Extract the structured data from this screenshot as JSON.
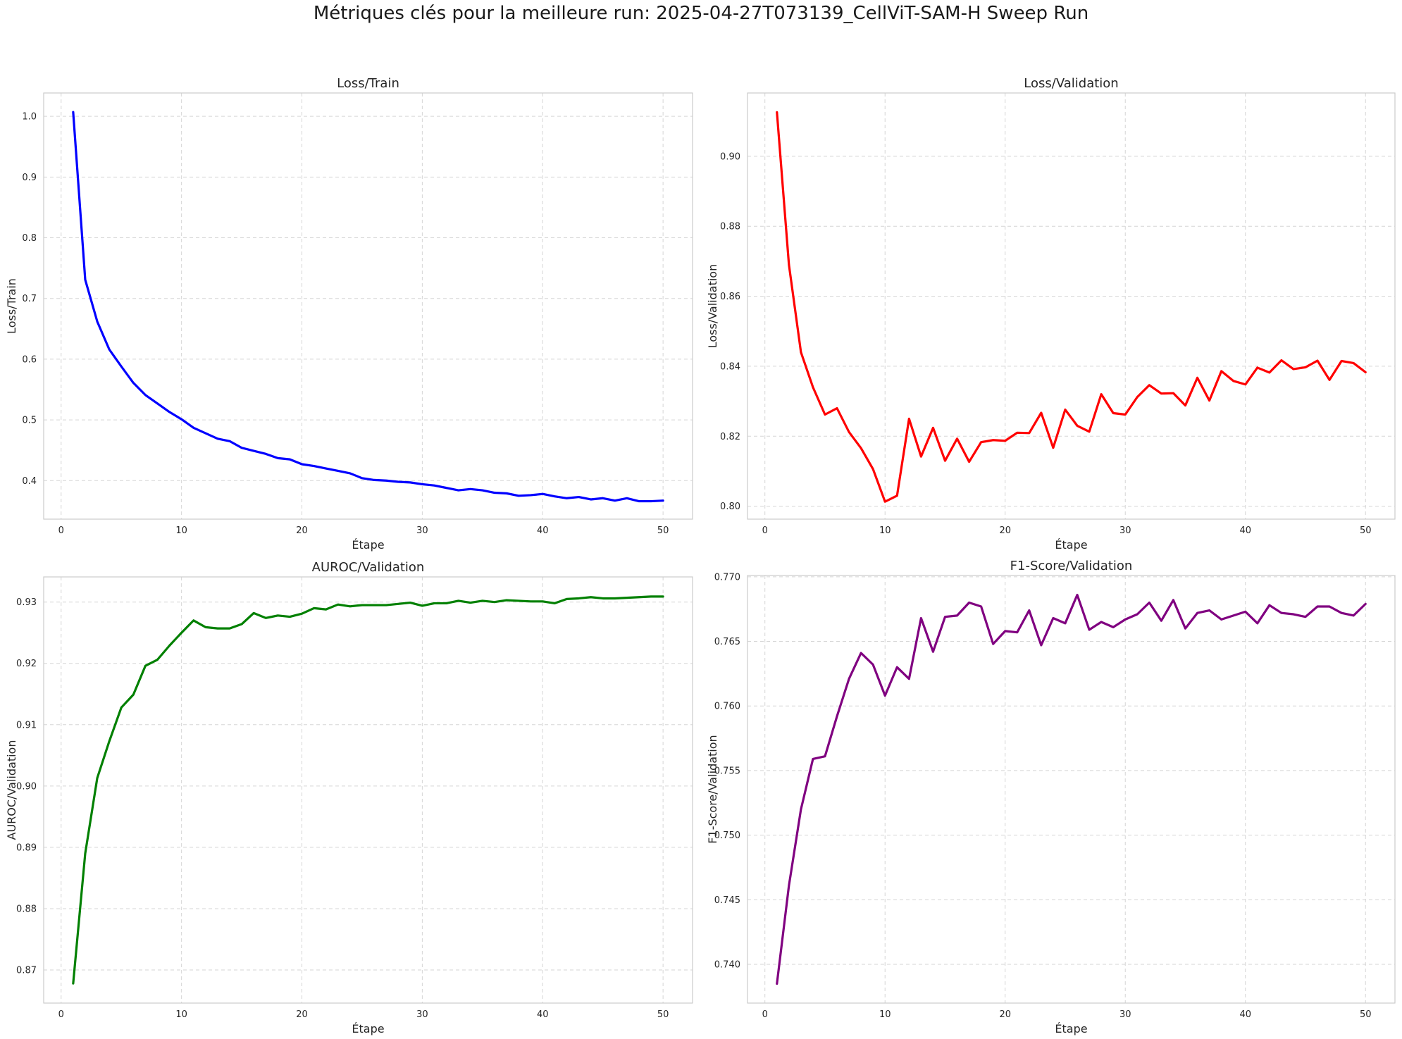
{
  "figure": {
    "title": "Métriques clés pour la meilleure run: 2025-04-27T073139_CellViT-SAM-H Sweep Run"
  },
  "chart_data": [
    {
      "type": "line",
      "title": "Loss/Train",
      "xlabel": "Étape",
      "ylabel": "Loss/Train",
      "xlim": [
        -1.45,
        52.45
      ],
      "ylim": [
        0.3365,
        1.0385
      ],
      "xticks": [
        0,
        10,
        20,
        30,
        40,
        50
      ],
      "xtick_labels": [
        "0",
        "10",
        "20",
        "30",
        "40",
        "50"
      ],
      "yticks": [
        0.4,
        0.5,
        0.6,
        0.7,
        0.8,
        0.9,
        1.0
      ],
      "ytick_labels": [
        "0.4",
        "0.5",
        "0.6",
        "0.7",
        "0.8",
        "0.9",
        "1.0"
      ],
      "grid": true,
      "color": "#0000ff",
      "x": [
        1,
        2,
        3,
        4,
        5,
        6,
        7,
        8,
        9,
        10,
        11,
        12,
        13,
        14,
        15,
        16,
        17,
        18,
        19,
        20,
        21,
        22,
        23,
        24,
        25,
        26,
        27,
        28,
        29,
        30,
        31,
        32,
        33,
        34,
        35,
        36,
        37,
        38,
        39,
        40,
        41,
        42,
        43,
        44,
        45,
        46,
        47,
        48,
        49,
        50
      ],
      "values": [
        1.007,
        0.731,
        0.662,
        0.616,
        0.588,
        0.561,
        0.541,
        0.527,
        0.513,
        0.501,
        0.487,
        0.478,
        0.469,
        0.465,
        0.454,
        0.449,
        0.444,
        0.437,
        0.435,
        0.427,
        0.424,
        0.42,
        0.416,
        0.412,
        0.404,
        0.401,
        0.4,
        0.398,
        0.397,
        0.394,
        0.392,
        0.388,
        0.384,
        0.386,
        0.384,
        0.38,
        0.379,
        0.375,
        0.376,
        0.378,
        0.374,
        0.371,
        0.373,
        0.369,
        0.371,
        0.367,
        0.371,
        0.366,
        0.366,
        0.367
      ]
    },
    {
      "type": "line",
      "title": "Loss/Validation",
      "xlabel": "Étape",
      "ylabel": "Loss/Validation",
      "xlim": [
        -1.45,
        52.45
      ],
      "ylim": [
        0.7963,
        0.9181
      ],
      "xticks": [
        0,
        10,
        20,
        30,
        40,
        50
      ],
      "xtick_labels": [
        "0",
        "10",
        "20",
        "30",
        "40",
        "50"
      ],
      "yticks": [
        0.8,
        0.82,
        0.84,
        0.86,
        0.88,
        0.9
      ],
      "ytick_labels": [
        "0.80",
        "0.82",
        "0.84",
        "0.86",
        "0.88",
        "0.90"
      ],
      "grid": true,
      "color": "#ff0000",
      "x": [
        1,
        2,
        3,
        4,
        5,
        6,
        7,
        8,
        9,
        10,
        11,
        12,
        13,
        14,
        15,
        16,
        17,
        18,
        19,
        20,
        21,
        22,
        23,
        24,
        25,
        26,
        27,
        28,
        29,
        30,
        31,
        32,
        33,
        34,
        35,
        36,
        37,
        38,
        39,
        40,
        41,
        42,
        43,
        44,
        45,
        46,
        47,
        48,
        49,
        50
      ],
      "values": [
        0.9126,
        0.869,
        0.844,
        0.834,
        0.8262,
        0.828,
        0.8212,
        0.8166,
        0.8106,
        0.8013,
        0.803,
        0.825,
        0.8142,
        0.8224,
        0.813,
        0.8193,
        0.8127,
        0.8183,
        0.8189,
        0.8187,
        0.821,
        0.8209,
        0.8267,
        0.8167,
        0.8276,
        0.823,
        0.8213,
        0.832,
        0.8266,
        0.8262,
        0.8312,
        0.8346,
        0.8322,
        0.8323,
        0.8288,
        0.8367,
        0.8302,
        0.8386,
        0.8358,
        0.8348,
        0.8396,
        0.8382,
        0.8417,
        0.8392,
        0.8397,
        0.8416,
        0.8361,
        0.8415,
        0.8409,
        0.8383
      ]
    },
    {
      "type": "line",
      "title": "AUROC/Validation",
      "xlabel": "Étape",
      "ylabel": "AUROC/Validation",
      "xlim": [
        -1.45,
        52.45
      ],
      "ylim": [
        0.8646,
        0.9341
      ],
      "xticks": [
        0,
        10,
        20,
        30,
        40,
        50
      ],
      "xtick_labels": [
        "0",
        "10",
        "20",
        "30",
        "40",
        "50"
      ],
      "yticks": [
        0.87,
        0.88,
        0.89,
        0.9,
        0.91,
        0.92,
        0.93
      ],
      "ytick_labels": [
        "0.87",
        "0.88",
        "0.89",
        "0.90",
        "0.91",
        "0.92",
        "0.93"
      ],
      "grid": true,
      "color": "#008000",
      "x": [
        1,
        2,
        3,
        4,
        5,
        6,
        7,
        8,
        9,
        10,
        11,
        12,
        13,
        14,
        15,
        16,
        17,
        18,
        19,
        20,
        21,
        22,
        23,
        24,
        25,
        26,
        27,
        28,
        29,
        30,
        31,
        32,
        33,
        34,
        35,
        36,
        37,
        38,
        39,
        40,
        41,
        42,
        43,
        44,
        45,
        46,
        47,
        48,
        49,
        50
      ],
      "values": [
        0.8678,
        0.889,
        0.9013,
        0.9073,
        0.9128,
        0.9149,
        0.9196,
        0.9206,
        0.9229,
        0.925,
        0.927,
        0.9259,
        0.9257,
        0.9257,
        0.9264,
        0.9282,
        0.9274,
        0.9278,
        0.9276,
        0.9281,
        0.929,
        0.9288,
        0.9296,
        0.9293,
        0.9295,
        0.9295,
        0.9295,
        0.9297,
        0.9299,
        0.9294,
        0.9298,
        0.9298,
        0.9302,
        0.9299,
        0.9302,
        0.93,
        0.9303,
        0.9302,
        0.9301,
        0.9301,
        0.9298,
        0.9305,
        0.9306,
        0.9308,
        0.9306,
        0.9306,
        0.9307,
        0.9308,
        0.9309,
        0.9309
      ]
    },
    {
      "type": "line",
      "title": "F1-Score/Validation",
      "xlabel": "Étape",
      "ylabel": "F1-Score/Validation",
      "xlim": [
        -1.45,
        52.45
      ],
      "ylim": [
        0.737,
        0.7701
      ],
      "xticks": [
        0,
        10,
        20,
        30,
        40,
        50
      ],
      "xtick_labels": [
        "0",
        "10",
        "20",
        "30",
        "40",
        "50"
      ],
      "yticks": [
        0.74,
        0.745,
        0.75,
        0.755,
        0.76,
        0.765,
        0.77
      ],
      "ytick_labels": [
        "0.740",
        "0.745",
        "0.750",
        "0.755",
        "0.760",
        "0.765",
        "0.770"
      ],
      "grid": true,
      "color": "#800080",
      "x": [
        1,
        2,
        3,
        4,
        5,
        6,
        7,
        8,
        9,
        10,
        11,
        12,
        13,
        14,
        15,
        16,
        17,
        18,
        19,
        20,
        21,
        22,
        23,
        24,
        25,
        26,
        27,
        28,
        29,
        30,
        31,
        32,
        33,
        34,
        35,
        36,
        37,
        38,
        39,
        40,
        41,
        42,
        43,
        44,
        45,
        46,
        47,
        48,
        49,
        50
      ],
      "values": [
        0.7385,
        0.7461,
        0.752,
        0.7559,
        0.7561,
        0.7592,
        0.7621,
        0.7641,
        0.7632,
        0.7608,
        0.763,
        0.7621,
        0.7668,
        0.7642,
        0.7669,
        0.767,
        0.768,
        0.7677,
        0.7648,
        0.7658,
        0.7657,
        0.7674,
        0.7647,
        0.7668,
        0.7664,
        0.7686,
        0.7659,
        0.7665,
        0.7661,
        0.7667,
        0.7671,
        0.768,
        0.7666,
        0.7682,
        0.766,
        0.7672,
        0.7674,
        0.7667,
        0.767,
        0.7673,
        0.7664,
        0.7678,
        0.7672,
        0.7671,
        0.7669,
        0.7677,
        0.7677,
        0.7672,
        0.767,
        0.7679
      ]
    }
  ]
}
